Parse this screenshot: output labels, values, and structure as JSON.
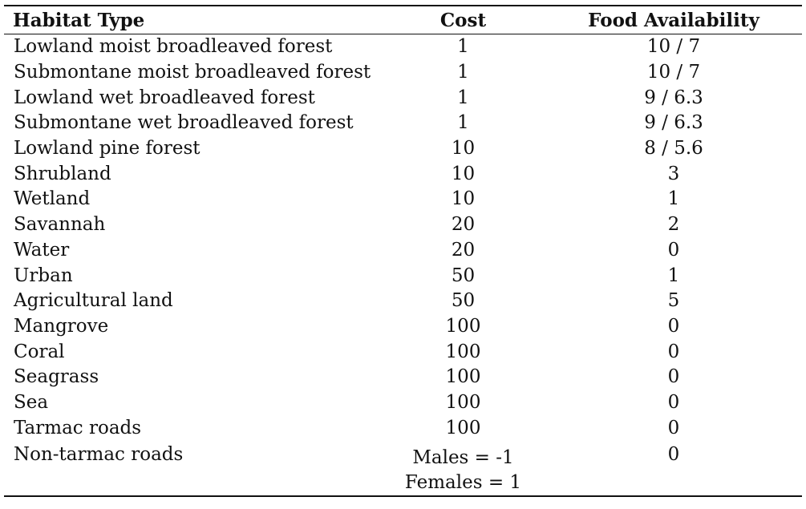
{
  "table": {
    "headers": [
      "Habitat Type",
      "Cost",
      "Food Availability"
    ],
    "rows": [
      {
        "habitat": "Lowland moist broadleaved forest",
        "cost": "1",
        "food": "10 /  7"
      },
      {
        "habitat": "Submontane moist broadleaved forest",
        "cost": "1",
        "food": "10 /  7"
      },
      {
        "habitat": "Lowland wet broadleaved forest",
        "cost": "1",
        "food": "9 /  6.3"
      },
      {
        "habitat": "Submontane wet broadleaved forest",
        "cost": "1",
        "food": "9 /  6.3"
      },
      {
        "habitat": "Lowland pine forest",
        "cost": "10",
        "food": "8 / 5.6"
      },
      {
        "habitat": "Shrubland",
        "cost": "10",
        "food": "3"
      },
      {
        "habitat": "Wetland",
        "cost": "10",
        "food": "1"
      },
      {
        "habitat": "Savannah",
        "cost": "20",
        "food": "2"
      },
      {
        "habitat": "Water",
        "cost": "20",
        "food": "0"
      },
      {
        "habitat": "Urban",
        "cost": "50",
        "food": "1"
      },
      {
        "habitat": "Agricultural land",
        "cost": "50",
        "food": "5"
      },
      {
        "habitat": "Mangrove",
        "cost": "100",
        "food": "0"
      },
      {
        "habitat": "Coral",
        "cost": "100",
        "food": "0"
      },
      {
        "habitat": "Seagrass",
        "cost": "100",
        "food": "0"
      },
      {
        "habitat": "Sea",
        "cost": "100",
        "food": "0"
      },
      {
        "habitat": "Tarmac roads",
        "cost": "100",
        "food": "0"
      }
    ],
    "last_row": {
      "habitat": "Non-tarmac roads",
      "cost_lines": [
        "Males  = -1",
        "Females = 1"
      ],
      "food": "0"
    }
  }
}
